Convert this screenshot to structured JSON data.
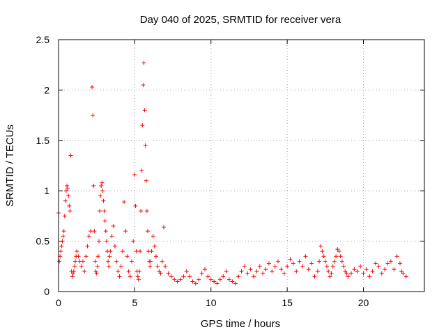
{
  "chart_data": {
    "type": "scatter",
    "title": "Day 040 of 2025, SRMTID for receiver vera",
    "xlabel": "GPS time / hours",
    "ylabel": "SRMTID / TECUs",
    "xlim": [
      0,
      24
    ],
    "ylim": [
      0,
      2.5
    ],
    "grid": true,
    "marker": "plus",
    "marker_color": "#ff0000",
    "x_ticks": [
      0,
      5,
      10,
      15,
      20
    ],
    "x_tick_labels": [
      "0",
      "5",
      "10",
      "15",
      "20"
    ],
    "y_ticks": [
      0,
      0.5,
      1,
      1.5,
      2,
      2.5
    ],
    "y_tick_labels": [
      "0",
      "0.5",
      "1",
      "1.5",
      "2",
      "2.5"
    ],
    "series": [
      {
        "name": "SRMTID",
        "x": [
          0.0,
          0.05,
          0.1,
          0.15,
          0.2,
          0.25,
          0.3,
          0.35,
          0.4,
          0.45,
          0.5,
          0.55,
          0.6,
          0.65,
          0.7,
          0.75,
          0.8,
          0.85,
          0.9,
          0.95,
          1.0,
          1.05,
          1.1,
          1.15,
          1.2,
          1.3,
          1.4,
          1.5,
          1.6,
          1.7,
          1.8,
          1.9,
          2.0,
          2.1,
          2.2,
          2.25,
          2.3,
          2.35,
          2.4,
          2.45,
          2.5,
          2.55,
          2.6,
          2.65,
          2.7,
          2.75,
          2.8,
          2.85,
          2.9,
          2.95,
          3.0,
          3.05,
          3.1,
          3.15,
          3.2,
          3.25,
          3.3,
          3.35,
          3.4,
          3.5,
          3.6,
          3.7,
          3.8,
          3.9,
          4.0,
          4.1,
          4.2,
          4.3,
          4.4,
          4.5,
          4.6,
          4.7,
          4.8,
          4.9,
          5.0,
          5.05,
          5.1,
          5.15,
          5.2,
          5.25,
          5.3,
          5.35,
          5.4,
          5.45,
          5.5,
          5.55,
          5.6,
          5.65,
          5.7,
          5.75,
          5.8,
          5.85,
          5.9,
          5.95,
          6.0,
          6.05,
          6.1,
          6.2,
          6.3,
          6.4,
          6.5,
          6.6,
          6.7,
          6.8,
          6.9,
          7.0,
          7.2,
          7.4,
          7.6,
          7.8,
          8.0,
          8.2,
          8.4,
          8.6,
          8.8,
          9.0,
          9.2,
          9.4,
          9.6,
          9.8,
          10.0,
          10.2,
          10.4,
          10.6,
          10.8,
          11.0,
          11.2,
          11.4,
          11.6,
          11.8,
          12.0,
          12.2,
          12.4,
          12.6,
          12.8,
          13.0,
          13.2,
          13.4,
          13.6,
          13.8,
          14.0,
          14.2,
          14.4,
          14.6,
          14.8,
          15.0,
          15.2,
          15.4,
          15.6,
          15.8,
          16.0,
          16.2,
          16.4,
          16.6,
          16.8,
          17.0,
          17.1,
          17.2,
          17.3,
          17.4,
          17.5,
          17.6,
          17.7,
          17.8,
          17.9,
          18.0,
          18.1,
          18.2,
          18.3,
          18.4,
          18.5,
          18.6,
          18.7,
          18.8,
          18.9,
          19.0,
          19.2,
          19.4,
          19.6,
          19.8,
          20.0,
          20.2,
          20.4,
          20.6,
          20.8,
          21.0,
          21.2,
          21.4,
          21.6,
          21.8,
          22.0,
          22.2,
          22.4,
          22.5,
          22.6,
          22.8
        ],
        "y": [
          0.78,
          0.3,
          0.35,
          0.4,
          0.45,
          0.5,
          0.55,
          0.6,
          0.75,
          0.9,
          1.0,
          1.05,
          1.02,
          0.95,
          0.85,
          0.8,
          1.35,
          0.2,
          0.15,
          0.18,
          0.2,
          0.25,
          0.3,
          0.35,
          0.4,
          0.35,
          0.3,
          0.25,
          0.3,
          0.2,
          0.35,
          0.45,
          0.55,
          0.6,
          2.03,
          1.75,
          1.05,
          0.6,
          0.3,
          0.2,
          0.18,
          0.25,
          0.35,
          0.5,
          0.8,
          0.95,
          1.05,
          1.08,
          1.0,
          0.9,
          0.8,
          0.7,
          0.6,
          0.5,
          0.4,
          0.3,
          0.25,
          0.35,
          0.4,
          0.55,
          0.65,
          0.45,
          0.3,
          0.2,
          0.15,
          0.25,
          0.4,
          0.89,
          0.6,
          0.35,
          0.2,
          0.15,
          0.3,
          0.5,
          1.16,
          0.85,
          0.4,
          0.2,
          0.15,
          0.12,
          0.2,
          0.4,
          0.8,
          1.2,
          1.65,
          2.05,
          2.27,
          1.8,
          1.45,
          1.1,
          0.8,
          0.6,
          0.4,
          0.3,
          0.25,
          0.3,
          0.4,
          0.55,
          0.45,
          0.35,
          0.25,
          0.2,
          0.18,
          0.3,
          0.64,
          0.25,
          0.18,
          0.15,
          0.12,
          0.1,
          0.12,
          0.15,
          0.2,
          0.15,
          0.1,
          0.08,
          0.12,
          0.18,
          0.22,
          0.15,
          0.12,
          0.1,
          0.08,
          0.12,
          0.15,
          0.2,
          0.12,
          0.1,
          0.08,
          0.15,
          0.2,
          0.25,
          0.18,
          0.22,
          0.15,
          0.2,
          0.25,
          0.18,
          0.22,
          0.28,
          0.2,
          0.25,
          0.3,
          0.22,
          0.18,
          0.25,
          0.32,
          0.28,
          0.2,
          0.3,
          0.25,
          0.35,
          0.22,
          0.28,
          0.15,
          0.2,
          0.3,
          0.45,
          0.4,
          0.35,
          0.3,
          0.25,
          0.2,
          0.15,
          0.18,
          0.25,
          0.3,
          0.35,
          0.42,
          0.4,
          0.35,
          0.3,
          0.25,
          0.2,
          0.18,
          0.15,
          0.18,
          0.22,
          0.2,
          0.25,
          0.18,
          0.22,
          0.15,
          0.2,
          0.28,
          0.25,
          0.18,
          0.22,
          0.28,
          0.3,
          0.22,
          0.35,
          0.28,
          0.2,
          0.18,
          0.15
        ]
      }
    ]
  }
}
